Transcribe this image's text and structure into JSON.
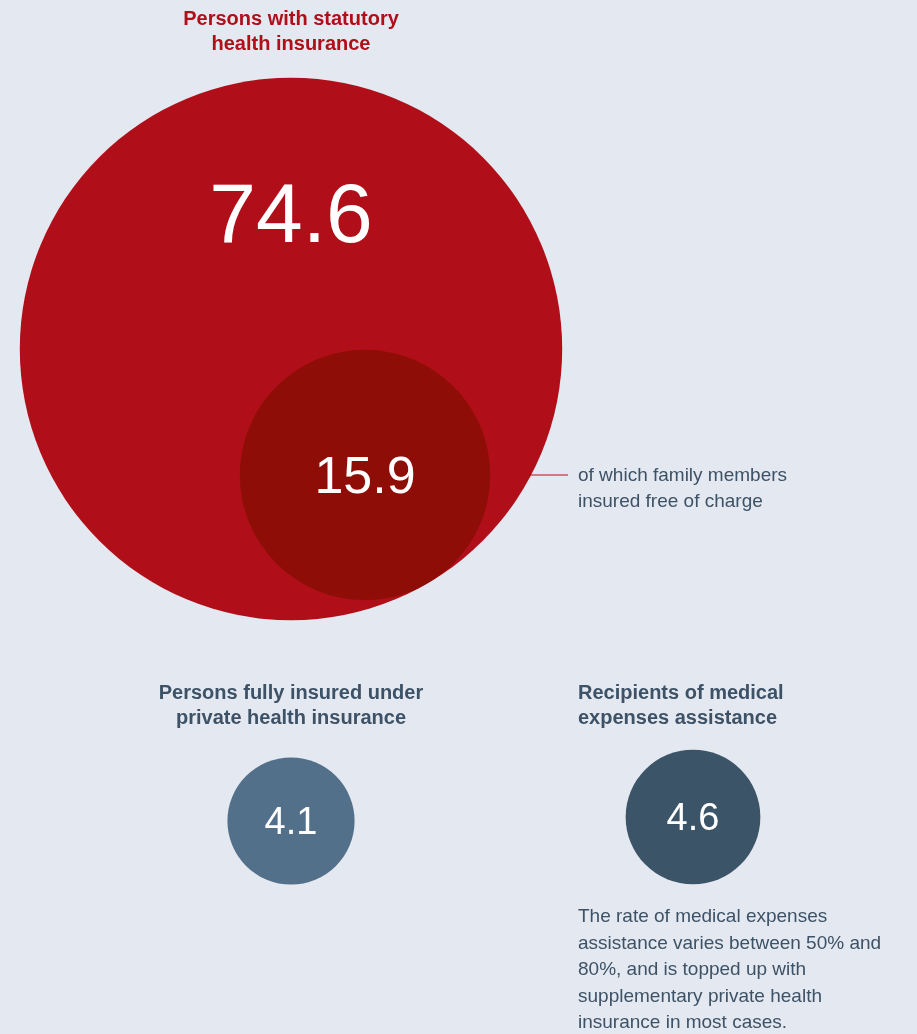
{
  "chart_data": {
    "type": "other",
    "categories": [
      "Persons with statutory health insurance",
      "of which family members insured free of charge",
      "Persons fully insured under private health insurance",
      "Recipients of medical expenses assistance"
    ],
    "values": [
      74.6,
      15.9,
      4.1,
      4.6
    ],
    "colors": [
      "#b00f19",
      "#8e0e07",
      "#527089",
      "#3c5468"
    ],
    "data_labels": true,
    "annotations": [
      "The rate of medical expenses assistance varies between 50% and 80%, and is topped up with supplementary private health insurance in most cases."
    ]
  }
}
